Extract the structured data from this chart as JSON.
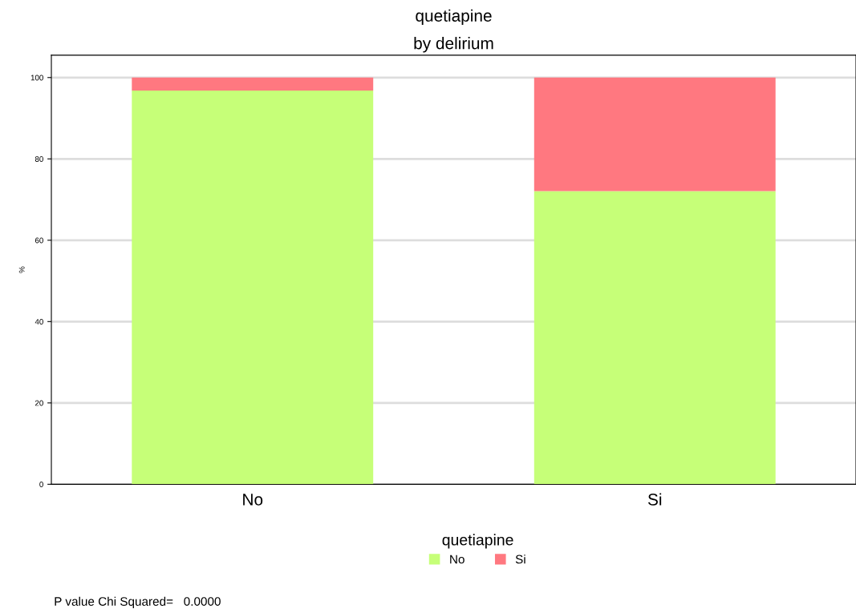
{
  "chart_data": {
    "type": "bar",
    "title": "quetiapine",
    "subtitle": "by delirium",
    "ylabel": "%",
    "categories": [
      "No",
      "Si"
    ],
    "stacked": true,
    "series": [
      {
        "name": "No",
        "color": "#c6ff78",
        "values": [
          96.8,
          72.1
        ]
      },
      {
        "name": "Si",
        "color": "#ff7880",
        "values": [
          3.2,
          27.9
        ]
      }
    ],
    "ylim": [
      0,
      105.5
    ],
    "yticks": [
      0,
      20,
      40,
      60,
      80,
      100
    ],
    "grid": "y",
    "legend": "bottom",
    "legend_title": "quetiapine",
    "annotations": [
      "P value Chi Squared=   0.0000"
    ]
  }
}
